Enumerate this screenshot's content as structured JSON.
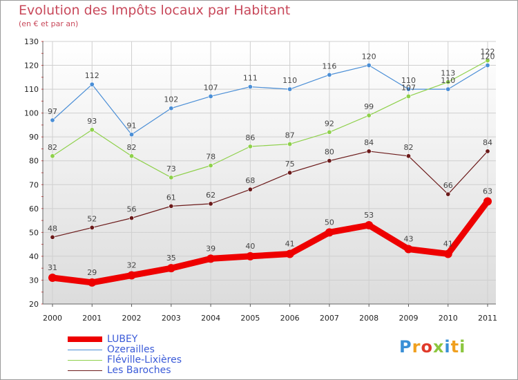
{
  "header": {
    "title": "Evolution des Impôts locaux par Habitant",
    "subtitle": "(en € et par an)"
  },
  "logo": {
    "text": "Proxiti"
  },
  "chart_data": {
    "type": "line",
    "title": "Evolution des Impôts locaux par Habitant",
    "subtitle": "(en € et par an)",
    "xlabel": "",
    "ylabel": "",
    "categories": [
      "2000",
      "2001",
      "2002",
      "2003",
      "2004",
      "2005",
      "2006",
      "2007",
      "2008",
      "2009",
      "2010",
      "2011"
    ],
    "ylim": [
      20,
      130
    ],
    "yticks": [
      "20",
      "30",
      "40",
      "50",
      "60",
      "70",
      "80",
      "90",
      "100",
      "110",
      "120",
      "130"
    ],
    "grid": true,
    "legend_position": "bottom-left",
    "series": [
      {
        "name": "LUBEY",
        "color": "#ee0000",
        "values": [
          31,
          29,
          32,
          35,
          39,
          40,
          41,
          50,
          53,
          43,
          41,
          63
        ]
      },
      {
        "name": "Ozerailles",
        "color": "#4a8ed6",
        "values": [
          97,
          112,
          91,
          102,
          107,
          111,
          110,
          116,
          120,
          110,
          110,
          120
        ]
      },
      {
        "name": "Fléville-Lixières",
        "color": "#8ed04a",
        "values": [
          82,
          93,
          82,
          73,
          78,
          86,
          87,
          92,
          99,
          107,
          113,
          122
        ]
      },
      {
        "name": "Les Baroches",
        "color": "#6b1a1a",
        "values": [
          48,
          52,
          56,
          61,
          62,
          68,
          75,
          80,
          84,
          82,
          66,
          84
        ]
      }
    ]
  }
}
